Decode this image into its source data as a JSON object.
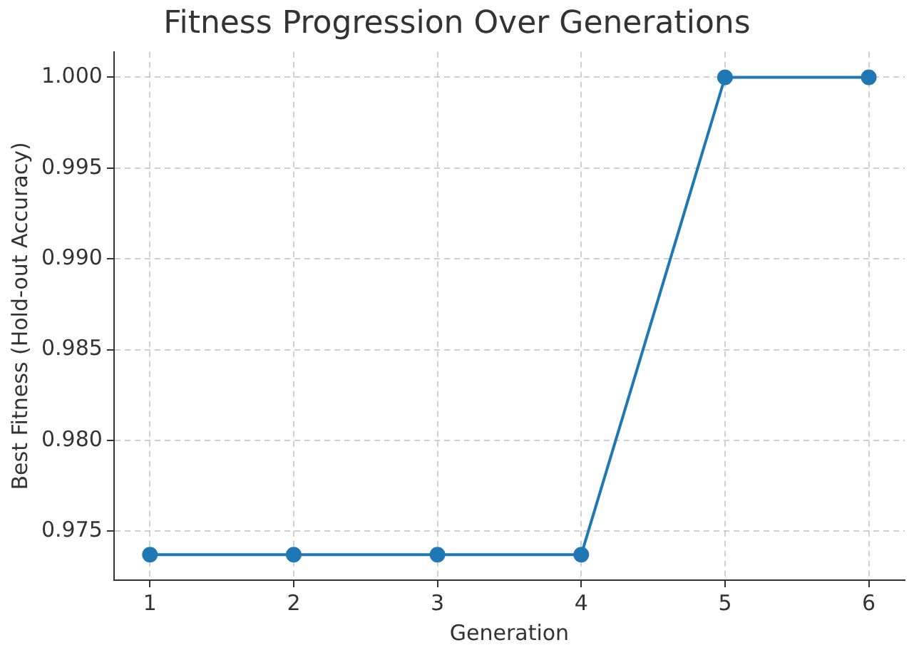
{
  "chart_data": {
    "type": "line",
    "title": "Fitness Progression Over Generations",
    "xlabel": "Generation",
    "ylabel": "Best Fitness (Hold-out Accuracy)",
    "x": [
      1,
      2,
      3,
      4,
      5,
      6
    ],
    "series": [
      {
        "color": "#1f77b4",
        "values": [
          0.9737,
          0.9737,
          0.9737,
          0.9737,
          1.0,
          1.0
        ]
      }
    ],
    "xlim": [
      0.75,
      6.25
    ],
    "xticks": [
      1,
      2,
      3,
      4,
      5,
      6
    ],
    "ylim": [
      0.9723,
      1.0014
    ],
    "yticks": [
      0.975,
      {
        "value": 0.98,
        "label": "0.980"
      },
      0.985,
      {
        "value": 0.99,
        "label": "0.990"
      },
      0.995,
      {
        "value": 1,
        "label": "1.000"
      }
    ],
    "grid": true,
    "marker": "circle",
    "line_style": "solid"
  }
}
